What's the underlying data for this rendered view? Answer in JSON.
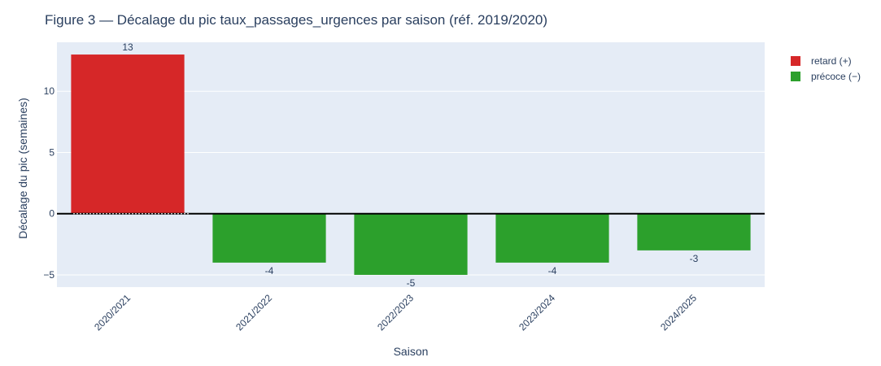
{
  "chart_data": {
    "type": "bar",
    "title": "Figure 3 — Décalage du pic taux_passages_urgences par saison (réf. 2019/2020)",
    "xlabel": "Saison",
    "ylabel": "Décalage du pic (semaines)",
    "categories": [
      "2020/2021",
      "2021/2022",
      "2022/2023",
      "2023/2024",
      "2024/2025"
    ],
    "values": [
      13,
      -4,
      -5,
      -4,
      -3
    ],
    "ylim": [
      -6,
      14
    ],
    "yticks": [
      -5,
      0,
      5,
      10
    ],
    "legend": {
      "placement": "top-right",
      "entries": [
        {
          "label": "retard (+)",
          "color": "#d62728"
        },
        {
          "label": "précoce (−)",
          "color": "#2ca02c"
        }
      ]
    },
    "colors": {
      "positive": "#d62728",
      "negative": "#2ca02c",
      "plot_bg": "#e5ecf6"
    },
    "grid": true
  }
}
